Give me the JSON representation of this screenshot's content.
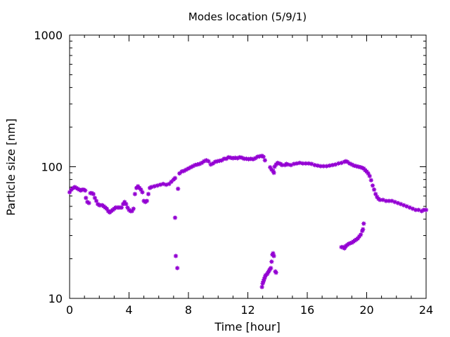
{
  "chart_data": {
    "type": "scatter",
    "title": "Modes location (5/9/1)",
    "xlabel": "Time [hour]",
    "ylabel": "Particle size [nm]",
    "xlim": [
      0,
      24
    ],
    "ylim": [
      10,
      1000
    ],
    "yscale": "log",
    "xticks": [
      "0",
      "4",
      "8",
      "12",
      "16",
      "20",
      "24"
    ],
    "yticks": [
      "10",
      "100",
      "1000"
    ],
    "grid": false,
    "legend": "none",
    "marker_color": "#9400d3",
    "series": [
      {
        "values": [
          [
            0.0,
            64
          ],
          [
            0.12,
            67
          ],
          [
            0.25,
            69
          ],
          [
            0.35,
            70
          ],
          [
            0.45,
            69
          ],
          [
            0.55,
            68
          ],
          [
            0.65,
            67
          ],
          [
            0.75,
            66
          ],
          [
            0.85,
            67
          ],
          [
            0.95,
            67
          ],
          [
            1.05,
            66
          ],
          [
            1.1,
            58
          ],
          [
            1.2,
            54
          ],
          [
            1.3,
            53
          ],
          [
            1.4,
            63
          ],
          [
            1.5,
            63
          ],
          [
            1.6,
            62
          ],
          [
            1.7,
            58
          ],
          [
            1.8,
            55
          ],
          [
            1.9,
            52
          ],
          [
            2.0,
            51
          ],
          [
            2.1,
            51
          ],
          [
            2.2,
            51
          ],
          [
            2.3,
            50
          ],
          [
            2.4,
            49
          ],
          [
            2.5,
            48
          ],
          [
            2.6,
            46
          ],
          [
            2.7,
            45
          ],
          [
            2.8,
            46
          ],
          [
            2.9,
            47
          ],
          [
            3.0,
            48
          ],
          [
            3.1,
            49
          ],
          [
            3.2,
            49
          ],
          [
            3.3,
            49
          ],
          [
            3.4,
            49
          ],
          [
            3.5,
            49
          ],
          [
            3.6,
            52
          ],
          [
            3.7,
            54
          ],
          [
            3.8,
            52
          ],
          [
            3.9,
            49
          ],
          [
            4.0,
            47
          ],
          [
            4.1,
            46
          ],
          [
            4.2,
            46
          ],
          [
            4.3,
            48
          ],
          [
            4.4,
            62
          ],
          [
            4.5,
            69
          ],
          [
            4.6,
            71
          ],
          [
            4.7,
            69
          ],
          [
            4.8,
            67
          ],
          [
            4.9,
            64
          ],
          [
            5.0,
            55
          ],
          [
            5.1,
            54
          ],
          [
            5.2,
            55
          ],
          [
            5.3,
            62
          ],
          [
            5.4,
            69
          ],
          [
            5.5,
            70
          ],
          [
            5.7,
            71
          ],
          [
            5.9,
            72
          ],
          [
            6.1,
            73
          ],
          [
            6.3,
            74
          ],
          [
            6.5,
            73
          ],
          [
            6.7,
            74
          ],
          [
            6.85,
            77
          ],
          [
            7.0,
            80
          ],
          [
            7.1,
            82
          ],
          [
            7.4,
            89
          ],
          [
            7.55,
            92
          ],
          [
            7.7,
            93
          ],
          [
            7.85,
            95
          ],
          [
            8.0,
            97
          ],
          [
            8.15,
            99
          ],
          [
            8.3,
            101
          ],
          [
            8.45,
            103
          ],
          [
            8.6,
            104
          ],
          [
            8.75,
            105
          ],
          [
            8.9,
            107
          ],
          [
            9.05,
            110
          ],
          [
            9.2,
            112
          ],
          [
            9.35,
            110
          ],
          [
            9.5,
            104
          ],
          [
            9.65,
            106
          ],
          [
            9.8,
            109
          ],
          [
            9.95,
            110
          ],
          [
            10.1,
            111
          ],
          [
            10.25,
            112
          ],
          [
            10.4,
            115
          ],
          [
            10.55,
            115
          ],
          [
            10.7,
            118
          ],
          [
            10.85,
            117
          ],
          [
            11.0,
            116
          ],
          [
            11.15,
            117
          ],
          [
            11.3,
            116
          ],
          [
            11.45,
            118
          ],
          [
            11.6,
            117
          ],
          [
            11.75,
            115
          ],
          [
            11.9,
            115
          ],
          [
            12.05,
            114
          ],
          [
            12.2,
            115
          ],
          [
            12.35,
            114
          ],
          [
            12.5,
            116
          ],
          [
            12.65,
            119
          ],
          [
            12.8,
            120
          ],
          [
            12.95,
            121
          ],
          [
            13.05,
            119
          ],
          [
            13.15,
            112
          ],
          [
            13.5,
            99
          ],
          [
            13.6,
            95
          ],
          [
            13.7,
            93
          ],
          [
            13.75,
            90
          ],
          [
            13.8,
            100
          ],
          [
            13.9,
            104
          ],
          [
            14.0,
            107
          ],
          [
            14.1,
            106
          ],
          [
            14.2,
            105
          ],
          [
            14.3,
            103
          ],
          [
            14.5,
            103
          ],
          [
            14.6,
            105
          ],
          [
            14.7,
            104
          ],
          [
            14.9,
            103
          ],
          [
            15.1,
            105
          ],
          [
            15.3,
            106
          ],
          [
            15.5,
            107
          ],
          [
            15.7,
            106
          ],
          [
            15.9,
            106
          ],
          [
            16.1,
            106
          ],
          [
            16.3,
            105
          ],
          [
            16.5,
            103
          ],
          [
            16.7,
            102
          ],
          [
            16.9,
            101
          ],
          [
            17.1,
            101
          ],
          [
            17.3,
            101
          ],
          [
            17.5,
            102
          ],
          [
            17.7,
            103
          ],
          [
            17.9,
            104
          ],
          [
            18.1,
            106
          ],
          [
            18.3,
            107
          ],
          [
            18.5,
            109
          ],
          [
            18.6,
            110
          ],
          [
            18.7,
            109
          ],
          [
            18.85,
            106
          ],
          [
            19.0,
            104
          ],
          [
            19.15,
            102
          ],
          [
            19.3,
            101
          ],
          [
            19.45,
            100
          ],
          [
            19.6,
            99
          ],
          [
            19.7,
            98
          ],
          [
            19.8,
            97
          ],
          [
            19.9,
            94
          ],
          [
            20.0,
            92
          ],
          [
            20.1,
            89
          ],
          [
            20.2,
            85
          ],
          [
            20.3,
            79
          ],
          [
            20.4,
            72
          ],
          [
            20.5,
            67
          ],
          [
            20.6,
            62
          ],
          [
            20.7,
            59
          ],
          [
            20.8,
            57
          ],
          [
            20.9,
            56
          ],
          [
            21.1,
            56
          ],
          [
            21.3,
            55
          ],
          [
            21.5,
            55
          ],
          [
            21.7,
            55
          ],
          [
            21.9,
            54
          ],
          [
            22.1,
            53
          ],
          [
            22.3,
            52
          ],
          [
            22.5,
            51
          ],
          [
            22.7,
            50
          ],
          [
            22.9,
            49
          ],
          [
            23.1,
            48
          ],
          [
            23.3,
            47
          ],
          [
            23.5,
            47
          ],
          [
            23.7,
            46
          ],
          [
            23.85,
            47
          ],
          [
            24.0,
            47
          ],
          [
            7.1,
            41
          ],
          [
            7.15,
            21
          ],
          [
            7.25,
            17
          ],
          [
            7.3,
            68
          ],
          [
            12.95,
            12.2
          ],
          [
            13.0,
            13
          ],
          [
            13.05,
            13.5
          ],
          [
            13.1,
            14
          ],
          [
            13.15,
            14.5
          ],
          [
            13.2,
            15
          ],
          [
            13.3,
            15.3
          ],
          [
            13.35,
            15.7
          ],
          [
            13.4,
            16
          ],
          [
            13.45,
            16.4
          ],
          [
            13.5,
            16.7
          ],
          [
            13.55,
            17
          ],
          [
            13.6,
            19
          ],
          [
            13.65,
            21.5
          ],
          [
            13.7,
            22
          ],
          [
            13.75,
            21
          ],
          [
            13.85,
            16
          ],
          [
            13.9,
            15.7
          ],
          [
            18.3,
            24.5
          ],
          [
            18.4,
            24.5
          ],
          [
            18.5,
            24
          ],
          [
            18.55,
            24.5
          ],
          [
            18.6,
            25
          ],
          [
            18.7,
            25.5
          ],
          [
            18.8,
            26
          ],
          [
            18.9,
            26.3
          ],
          [
            19.0,
            26.5
          ],
          [
            19.1,
            27
          ],
          [
            19.2,
            27.5
          ],
          [
            19.3,
            28
          ],
          [
            19.4,
            28.5
          ],
          [
            19.5,
            29.5
          ],
          [
            19.6,
            30.5
          ],
          [
            19.7,
            32.5
          ],
          [
            19.75,
            33.5
          ],
          [
            19.8,
            37
          ]
        ]
      }
    ]
  }
}
